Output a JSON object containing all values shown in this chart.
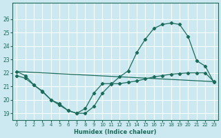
{
  "xlabel": "Humidex (Indice chaleur)",
  "bg_color": "#cce8f0",
  "grid_color": "#ffffff",
  "line_color": "#1a6b5a",
  "xlim": [
    -0.5,
    23.5
  ],
  "ylim": [
    18.5,
    27.2
  ],
  "yticks": [
    19,
    20,
    21,
    22,
    23,
    24,
    25,
    26
  ],
  "xticks": [
    0,
    1,
    2,
    3,
    4,
    5,
    6,
    7,
    8,
    9,
    10,
    11,
    12,
    13,
    14,
    15,
    16,
    17,
    18,
    19,
    20,
    21,
    22,
    23
  ],
  "line1_x": [
    0,
    1,
    2,
    3,
    4,
    5,
    6,
    7,
    8,
    9,
    10,
    11,
    12,
    13,
    14,
    15,
    16,
    17,
    18,
    19,
    20,
    21,
    22,
    23
  ],
  "line1_y": [
    21.8,
    21.6,
    21.1,
    20.6,
    20.0,
    19.6,
    19.2,
    19.0,
    19.0,
    19.5,
    20.5,
    21.15,
    21.7,
    22.15,
    23.5,
    24.5,
    25.3,
    25.6,
    25.7,
    25.6,
    24.7,
    22.9,
    22.5,
    21.3
  ],
  "line2_x": [
    0,
    1,
    2,
    3,
    4,
    5,
    6,
    7,
    8,
    9,
    10,
    11,
    12,
    13,
    14,
    15,
    16,
    17,
    18,
    19,
    20,
    21,
    22,
    23
  ],
  "line2_y": [
    22.1,
    21.8,
    21.1,
    20.65,
    20.0,
    19.7,
    19.2,
    19.0,
    19.35,
    20.5,
    21.2,
    21.2,
    21.2,
    21.3,
    21.4,
    21.55,
    21.7,
    21.8,
    21.9,
    21.95,
    22.0,
    22.0,
    22.0,
    21.35
  ],
  "line3_x": [
    0,
    23
  ],
  "line3_y": [
    22.1,
    21.35
  ]
}
